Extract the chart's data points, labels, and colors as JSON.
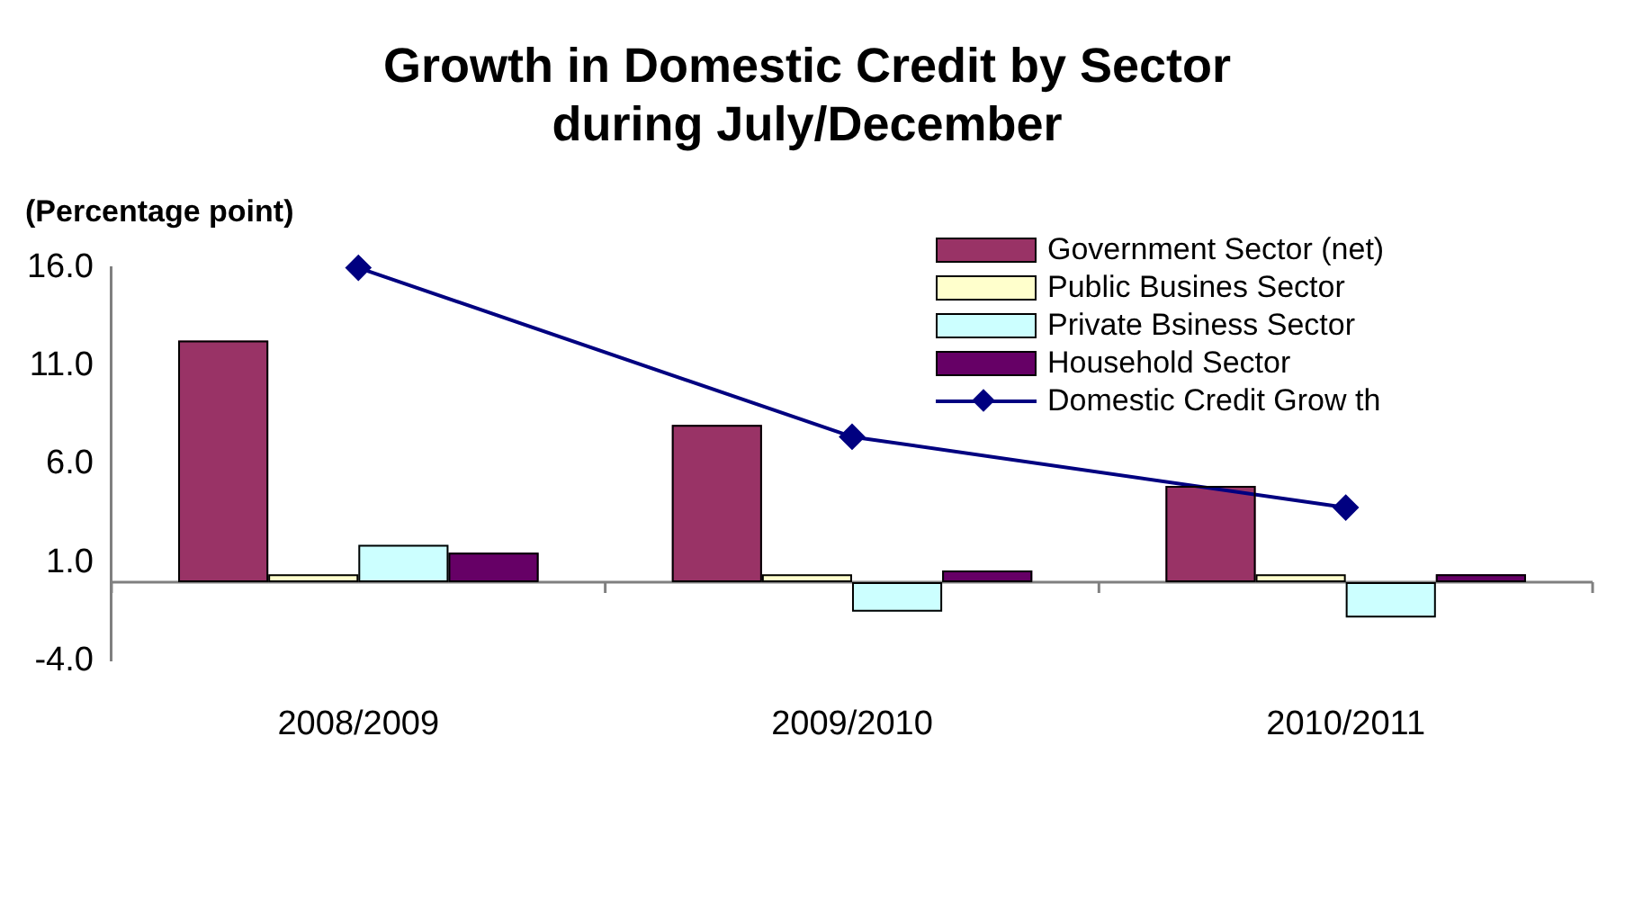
{
  "chart_data": {
    "type": "bar",
    "title": [
      "Growth in Domestic Credit by Sector",
      "during July/December"
    ],
    "ylabel": "(Percentage point)",
    "categories": [
      "2008/2009",
      "2009/2010",
      "2010/2011"
    ],
    "series": [
      {
        "name": "Government Sector (net)",
        "color": "#993366",
        "values": [
          12.3,
          8.0,
          4.9
        ]
      },
      {
        "name": "Public Busines Sector",
        "color": "#ffffcc",
        "values": [
          0.4,
          0.4,
          0.4
        ]
      },
      {
        "name": "Private Bsiness Sector",
        "color": "#ccffff",
        "values": [
          1.9,
          -1.5,
          -1.8
        ]
      },
      {
        "name": "Household Sector",
        "color": "#660066",
        "values": [
          1.5,
          0.6,
          0.4
        ]
      },
      {
        "name": "Domestic Credit Grow th",
        "type": "line",
        "color": "#000080",
        "values": [
          16.0,
          7.4,
          3.8
        ]
      }
    ],
    "ylim": [
      -4,
      16
    ],
    "yticks": [
      {
        "value": -4,
        "label": "-4.0"
      },
      {
        "value": 1,
        "label": "1.0"
      },
      {
        "value": 6,
        "label": "6.0"
      },
      {
        "value": 11,
        "label": "11.0"
      },
      {
        "value": 16,
        "label": "16.0"
      }
    ],
    "grid": false,
    "legend": "top right",
    "marker": "diamond",
    "line_style": "solid"
  }
}
